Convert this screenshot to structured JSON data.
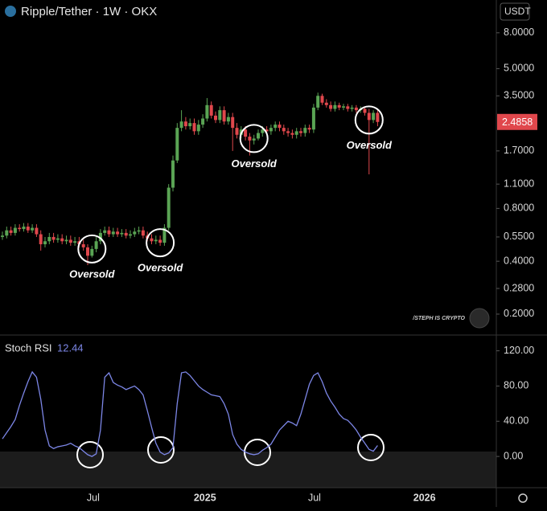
{
  "title": "Ripple/Tether · 1W · OKX",
  "currency": "USDT",
  "watermark": "/STEPH IS CRYPTO",
  "chart_data": [
    {
      "type": "candlestick",
      "log_scale": true,
      "up_color": "#5aa454",
      "down_color": "#e0474c",
      "ylim": [
        0.152,
        12.3
      ],
      "yticks": [
        {
          "value": 8,
          "label": "8.0000"
        },
        {
          "value": 5,
          "label": "5.0000"
        },
        {
          "value": 3.5,
          "label": "3.5000"
        },
        {
          "value": 1.7,
          "label": "1.7000"
        },
        {
          "value": 1.1,
          "label": "1.1000"
        },
        {
          "value": 0.8,
          "label": "0.8000"
        },
        {
          "value": 0.55,
          "label": "0.5500"
        },
        {
          "value": 0.4,
          "label": "0.4000"
        },
        {
          "value": 0.28,
          "label": "0.2800"
        },
        {
          "value": 0.2,
          "label": "0.2000"
        }
      ],
      "xticks": [
        {
          "value": 21.3,
          "label": "Jul"
        },
        {
          "value": 47.5,
          "label": "2025"
        },
        {
          "value": 73.2,
          "label": "Jul"
        },
        {
          "value": 99,
          "label": "2026"
        }
      ],
      "open": [
        0.55,
        0.56,
        0.6,
        0.58,
        0.62,
        0.61,
        0.63,
        0.6,
        0.62,
        0.57,
        0.5,
        0.52,
        0.55,
        0.53,
        0.54,
        0.52,
        0.53,
        0.51,
        0.52,
        0.5,
        0.48,
        0.43,
        0.47,
        0.52,
        0.58,
        0.6,
        0.57,
        0.59,
        0.57,
        0.58,
        0.56,
        0.57,
        0.59,
        0.6,
        0.56,
        0.54,
        0.52,
        0.53,
        0.51,
        0.62,
        1.05,
        1.5,
        2.3,
        2.5,
        2.35,
        2.45,
        2.2,
        2.4,
        2.6,
        3.1,
        2.7,
        2.55,
        2.9,
        2.5,
        2.65,
        2.3,
        2.1,
        2.25,
        2.05,
        1.95,
        2.0,
        2.15,
        2.25,
        2.2,
        2.3,
        2.4,
        2.3,
        2.2,
        2.15,
        2.1,
        2.2,
        2.15,
        2.3,
        2.25,
        3.0,
        3.5,
        3.2,
        3.1,
        2.95,
        3.1,
        3.0,
        3.05,
        2.95,
        3.0,
        2.9,
        2.95,
        2.8,
        2.55,
        2.8
      ],
      "high": [
        0.59,
        0.63,
        0.63,
        0.65,
        0.65,
        0.66,
        0.66,
        0.65,
        0.65,
        0.6,
        0.55,
        0.58,
        0.58,
        0.57,
        0.57,
        0.56,
        0.56,
        0.55,
        0.55,
        0.53,
        0.5,
        0.49,
        0.55,
        0.61,
        0.63,
        0.63,
        0.62,
        0.62,
        0.61,
        0.61,
        0.6,
        0.62,
        0.63,
        0.63,
        0.59,
        0.57,
        0.56,
        0.56,
        0.65,
        1.1,
        1.6,
        2.45,
        2.9,
        2.65,
        2.6,
        2.6,
        2.55,
        2.75,
        3.4,
        3.25,
        2.85,
        3.05,
        3.05,
        2.8,
        2.8,
        2.45,
        2.35,
        2.35,
        2.15,
        2.1,
        2.25,
        2.35,
        2.35,
        2.4,
        2.5,
        2.5,
        2.4,
        2.3,
        2.25,
        2.3,
        2.3,
        2.4,
        2.4,
        3.15,
        3.65,
        3.6,
        3.35,
        3.25,
        3.25,
        3.2,
        3.15,
        3.15,
        3.1,
        3.1,
        3.05,
        3.05,
        2.95,
        2.9,
        2.9
      ],
      "low": [
        0.53,
        0.54,
        0.56,
        0.56,
        0.59,
        0.59,
        0.58,
        0.58,
        0.55,
        0.46,
        0.48,
        0.5,
        0.51,
        0.51,
        0.5,
        0.5,
        0.49,
        0.49,
        0.48,
        0.46,
        0.38,
        0.42,
        0.45,
        0.5,
        0.56,
        0.55,
        0.55,
        0.55,
        0.55,
        0.54,
        0.54,
        0.55,
        0.57,
        0.54,
        0.52,
        0.5,
        0.5,
        0.49,
        0.49,
        0.6,
        1.0,
        1.45,
        2.2,
        2.25,
        2.25,
        2.1,
        2.1,
        2.3,
        2.5,
        2.6,
        2.45,
        2.45,
        2.4,
        2.4,
        1.7,
        2.0,
        2.0,
        1.95,
        1.6,
        1.85,
        1.95,
        2.05,
        2.1,
        2.1,
        2.2,
        2.2,
        2.1,
        2.05,
        2.0,
        2.0,
        2.05,
        2.05,
        2.15,
        2.15,
        2.9,
        3.1,
        3.0,
        2.85,
        2.85,
        2.9,
        2.9,
        2.85,
        2.85,
        2.8,
        2.8,
        2.7,
        1.25,
        2.45,
        2.35
      ],
      "close": [
        0.56,
        0.6,
        0.58,
        0.62,
        0.61,
        0.63,
        0.6,
        0.62,
        0.57,
        0.5,
        0.52,
        0.55,
        0.53,
        0.54,
        0.52,
        0.53,
        0.51,
        0.52,
        0.5,
        0.48,
        0.43,
        0.47,
        0.52,
        0.58,
        0.6,
        0.57,
        0.59,
        0.57,
        0.58,
        0.56,
        0.57,
        0.59,
        0.6,
        0.56,
        0.54,
        0.52,
        0.53,
        0.51,
        0.62,
        1.05,
        1.5,
        2.3,
        2.5,
        2.35,
        2.45,
        2.2,
        2.4,
        2.6,
        3.1,
        2.7,
        2.55,
        2.9,
        2.5,
        2.65,
        2.3,
        2.1,
        2.25,
        2.05,
        1.95,
        2.0,
        2.15,
        2.25,
        2.2,
        2.3,
        2.4,
        2.3,
        2.2,
        2.15,
        2.1,
        2.2,
        2.15,
        2.3,
        2.25,
        3.0,
        3.5,
        3.2,
        3.1,
        2.95,
        3.1,
        3.0,
        3.05,
        2.95,
        3.0,
        2.9,
        2.95,
        2.8,
        2.55,
        2.8,
        2.4858
      ],
      "annotations": [
        {
          "text": "Oversold",
          "index": 21
        },
        {
          "text": "Oversold",
          "index": 37
        },
        {
          "text": "Oversold",
          "index": 59
        },
        {
          "text": "Oversold",
          "index": 86
        }
      ]
    },
    {
      "type": "line",
      "title": "Stoch RSI",
      "color": "#7c86e6",
      "ylim": [
        -35.5,
        137
      ],
      "yticks": [
        {
          "value": 120,
          "label": "120.00"
        },
        {
          "value": 80,
          "label": "80.00"
        },
        {
          "value": 40,
          "label": "40.00"
        },
        {
          "value": 0,
          "label": "0.00"
        }
      ],
      "values": [
        20,
        27,
        34,
        42,
        58,
        72,
        85,
        96,
        90,
        65,
        30,
        12,
        9,
        11,
        12,
        13,
        15,
        12,
        10,
        6,
        2,
        0,
        3,
        30,
        90,
        95,
        84,
        81,
        79,
        76,
        78,
        80,
        76,
        70,
        52,
        33,
        15,
        5,
        2,
        4,
        10,
        60,
        95,
        96,
        92,
        86,
        80,
        76,
        73,
        70,
        69,
        68,
        60,
        48,
        25,
        14,
        8,
        5,
        3,
        2,
        3,
        7,
        10,
        14,
        22,
        30,
        35,
        40,
        38,
        35,
        48,
        65,
        82,
        92,
        95,
        85,
        72,
        63,
        56,
        48,
        43,
        41,
        36,
        30,
        22,
        15,
        8,
        6,
        12.44
      ]
    }
  ]
}
